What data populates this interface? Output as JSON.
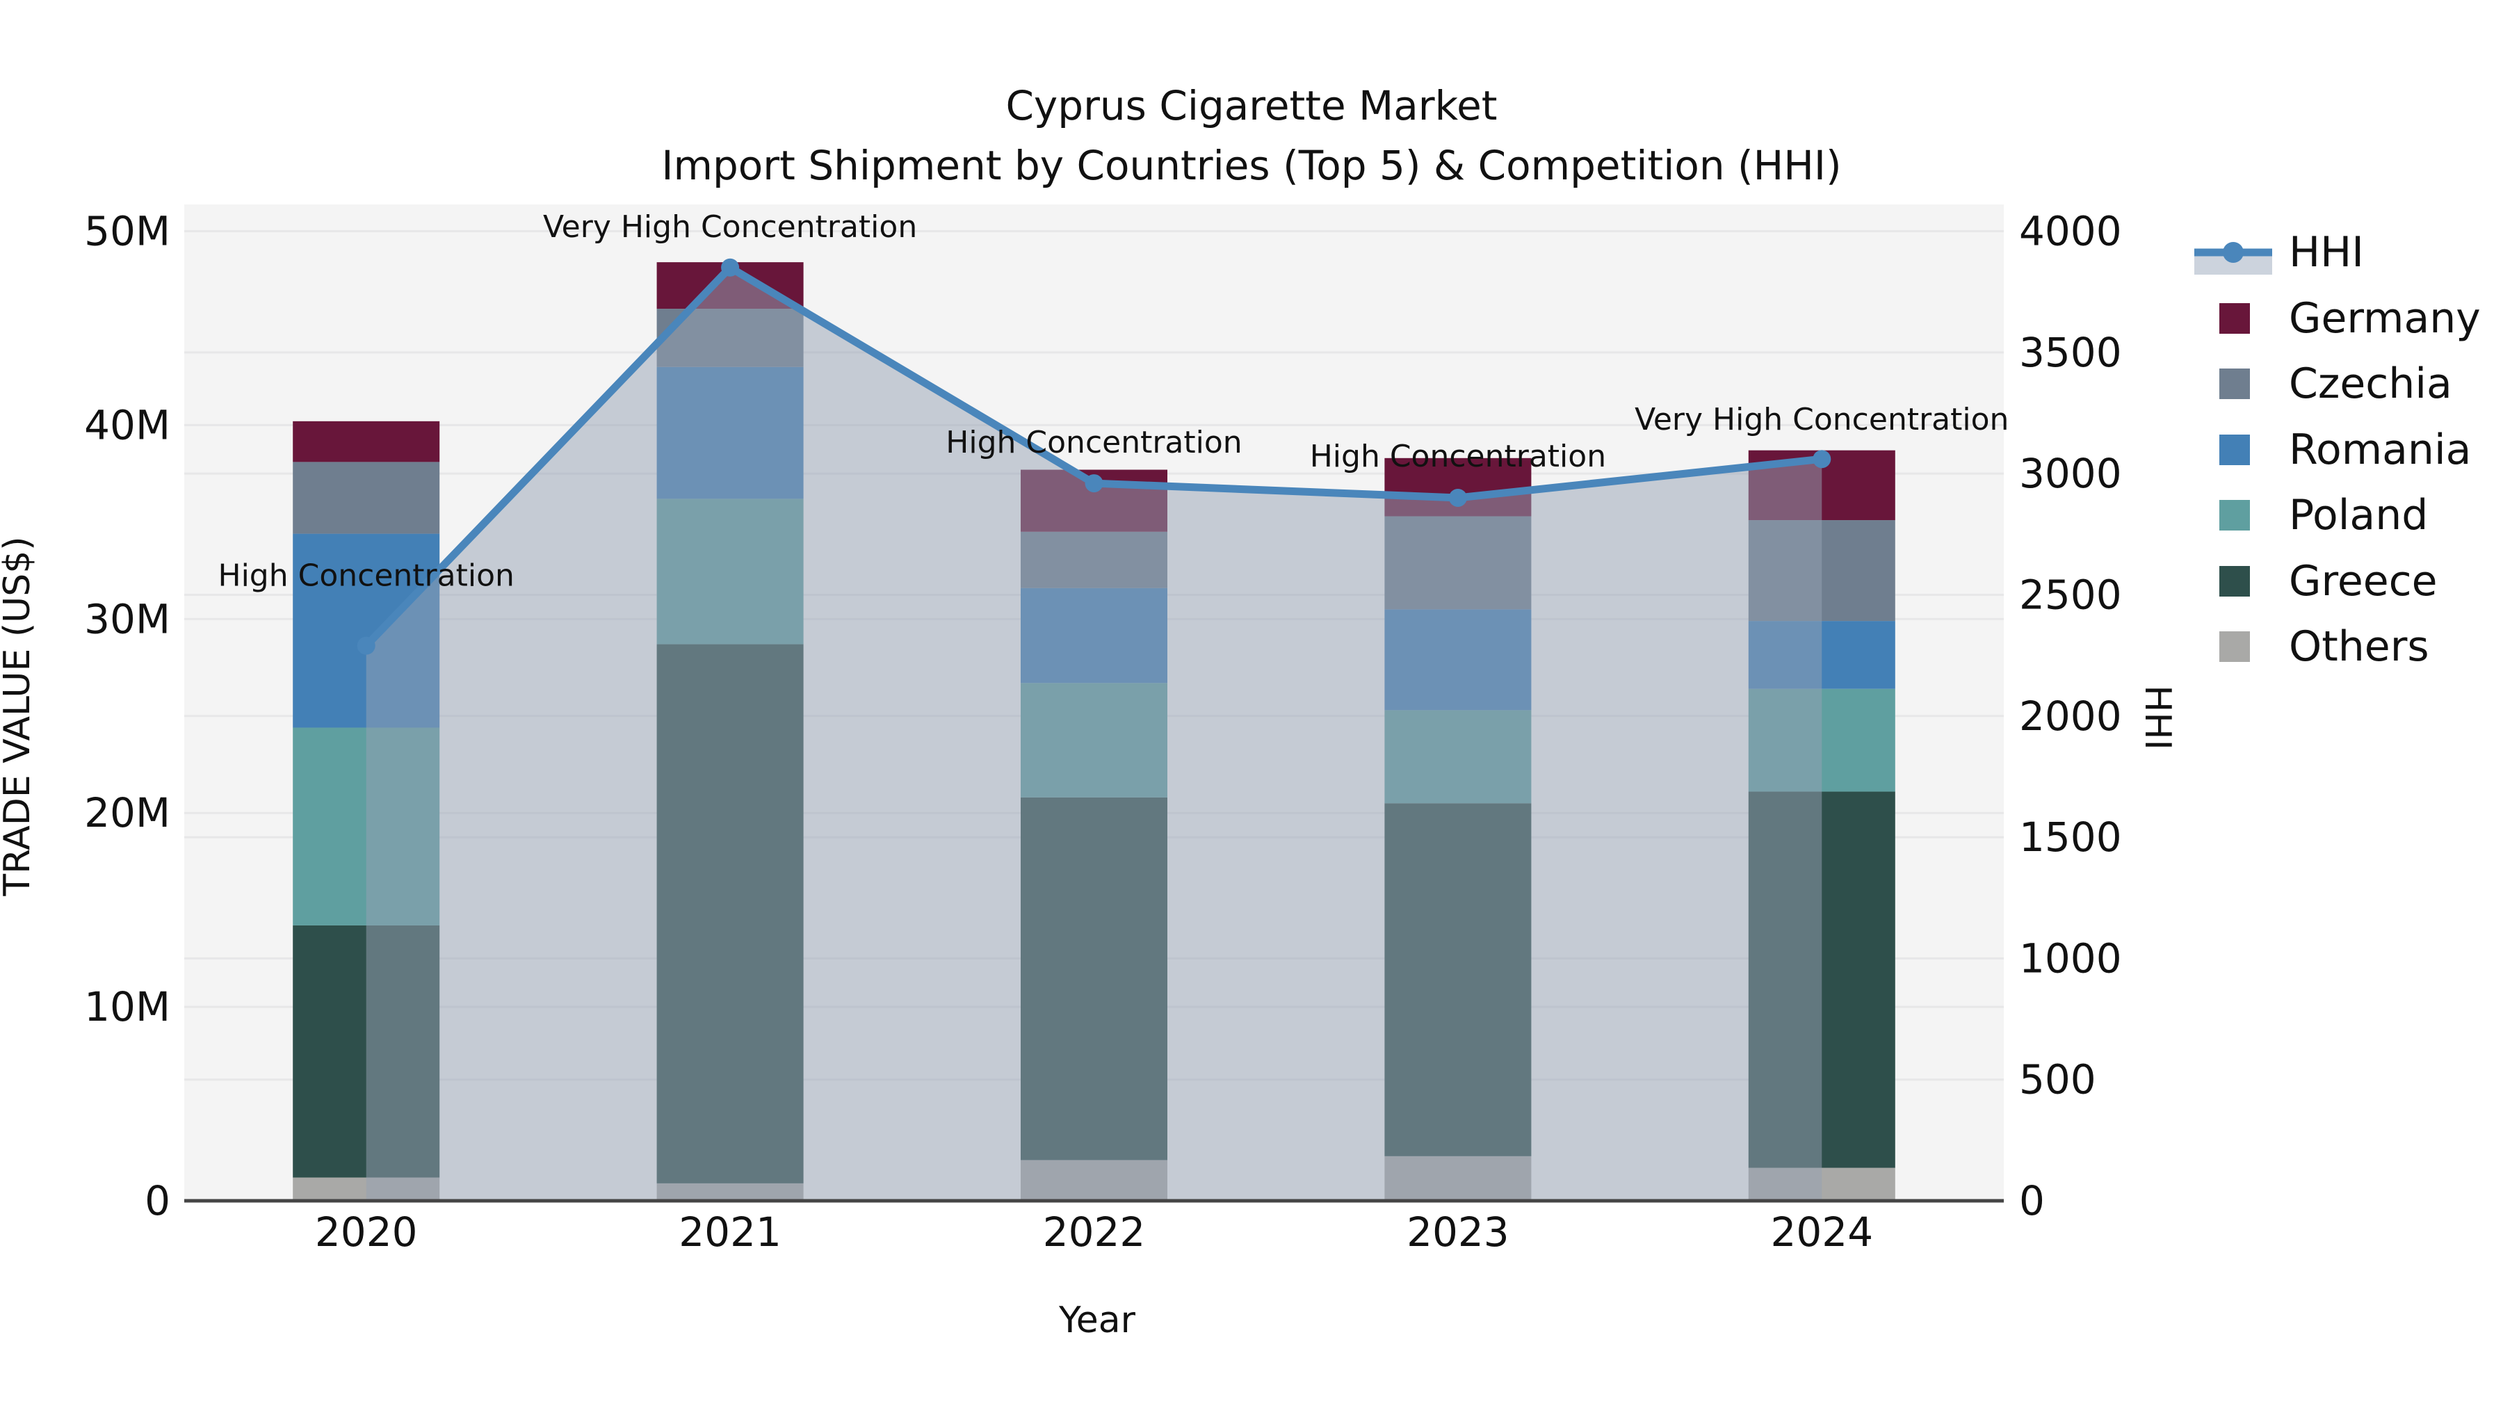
{
  "chart_data": {
    "type": "bar",
    "subtype": "stacked-bars-with-line-dual-axis",
    "title": "Cyprus Cigarette Market",
    "subtitle": "Import Shipment by Countries (Top 5) & Competition (HHI)",
    "xlabel": "Year",
    "ylabel_left": "TRADE VALUE (US$)",
    "ylabel_right": "HHI",
    "categories": [
      "2020",
      "2021",
      "2022",
      "2023",
      "2024"
    ],
    "unit": "million US$",
    "stack_order_bottom_to_top": [
      "Others",
      "Greece",
      "Poland",
      "Romania",
      "Czechia",
      "Germany"
    ],
    "series": [
      {
        "name": "Others",
        "values": [
          1.2,
          0.9,
          2.1,
          2.3,
          1.7
        ],
        "color": "#a9a9a7"
      },
      {
        "name": "Greece",
        "values": [
          13.0,
          27.8,
          18.7,
          18.2,
          19.4
        ],
        "color": "#2e4f4b"
      },
      {
        "name": "Poland",
        "values": [
          10.2,
          7.5,
          5.9,
          4.8,
          5.3
        ],
        "color": "#5f9fa0"
      },
      {
        "name": "Romania",
        "values": [
          10.0,
          6.8,
          4.9,
          5.2,
          3.5
        ],
        "color": "#4380b6"
      },
      {
        "name": "Czechia",
        "values": [
          3.7,
          3.0,
          2.9,
          4.8,
          5.2
        ],
        "color": "#6f7e8f"
      },
      {
        "name": "Germany",
        "values": [
          2.1,
          2.4,
          3.2,
          3.0,
          3.6
        ],
        "color": "#68163a"
      }
    ],
    "bar_totals": [
      40.2,
      48.4,
      37.7,
      38.3,
      38.7
    ],
    "hhi_line": {
      "name": "HHI",
      "values": [
        2290,
        3850,
        2960,
        2900,
        3060
      ],
      "line_color": "#4a86bb",
      "area_fill_color": "rgba(150,162,180,0.5)"
    },
    "annotations": [
      {
        "year": "2020",
        "text": "High Concentration"
      },
      {
        "year": "2021",
        "text": "Very High Concentration"
      },
      {
        "year": "2022",
        "text": "High Concentration"
      },
      {
        "year": "2023",
        "text": "High Concentration"
      },
      {
        "year": "2024",
        "text": "Very High Concentration"
      }
    ],
    "y_axis_left": {
      "min": 0,
      "max": 50,
      "tick_labels": [
        "0",
        "10M",
        "20M",
        "30M",
        "40M",
        "50M"
      ],
      "tick_values": [
        0,
        10,
        20,
        30,
        40,
        50
      ]
    },
    "y_axis_right": {
      "min": 0,
      "max": 4000,
      "tick_labels": [
        "0",
        "500",
        "1000",
        "1500",
        "2000",
        "2500",
        "3000",
        "3500",
        "4000"
      ],
      "tick_values": [
        0,
        500,
        1000,
        1500,
        2000,
        2500,
        3000,
        3500,
        4000
      ]
    },
    "legend": {
      "position": "upper right, outside plot",
      "entries": [
        {
          "label": "HHI",
          "type": "line",
          "color": "#4a86bb",
          "fill": "#ccd3dd"
        },
        {
          "label": "Germany",
          "type": "patch",
          "color": "#68163a"
        },
        {
          "label": "Czechia",
          "type": "patch",
          "color": "#6f7e8f"
        },
        {
          "label": "Romania",
          "type": "patch",
          "color": "#4380b6"
        },
        {
          "label": "Poland",
          "type": "patch",
          "color": "#5f9fa0"
        },
        {
          "label": "Greece",
          "type": "patch",
          "color": "#2e4f4b"
        },
        {
          "label": "Others",
          "type": "patch",
          "color": "#a9a9a7"
        }
      ]
    },
    "style": {
      "plot_bg": "#f4f4f4",
      "grid_color": "#e7e7e8",
      "spine_color": "#454545",
      "grid": "horizontal only, left and right axis ticks"
    }
  }
}
